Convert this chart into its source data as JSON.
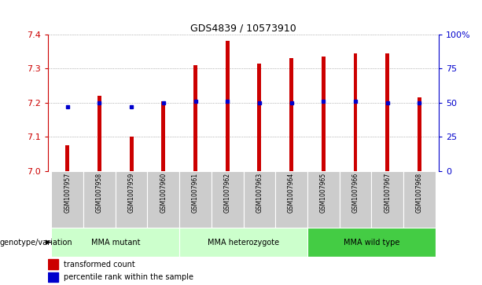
{
  "title": "GDS4839 / 10573910",
  "samples": [
    "GSM1007957",
    "GSM1007958",
    "GSM1007959",
    "GSM1007960",
    "GSM1007961",
    "GSM1007962",
    "GSM1007963",
    "GSM1007964",
    "GSM1007965",
    "GSM1007966",
    "GSM1007967",
    "GSM1007968"
  ],
  "transformed_count": [
    7.075,
    7.22,
    7.1,
    7.205,
    7.31,
    7.38,
    7.315,
    7.33,
    7.335,
    7.345,
    7.345,
    7.215
  ],
  "percentile_rank_vals": [
    47,
    50,
    47,
    50,
    51,
    51,
    50,
    50,
    51,
    51,
    50,
    50
  ],
  "ylim_left": [
    7.0,
    7.4
  ],
  "ylim_right": [
    0,
    100
  ],
  "yticks_left": [
    7.0,
    7.1,
    7.2,
    7.3,
    7.4
  ],
  "yticks_right": [
    0,
    25,
    50,
    75,
    100
  ],
  "ytick_labels_right": [
    "0",
    "25",
    "50",
    "75",
    "100%"
  ],
  "bar_color": "#cc0000",
  "dot_color": "#0000cc",
  "bar_bottom": 7.0,
  "group_defs": [
    [
      0,
      4,
      "MMA mutant",
      "#ccffcc"
    ],
    [
      4,
      8,
      "MMA heterozygote",
      "#ccffcc"
    ],
    [
      8,
      12,
      "MMA wild type",
      "#44cc44"
    ]
  ],
  "legend_red_label": "transformed count",
  "legend_blue_label": "percentile rank within the sample",
  "genotype_label": "genotype/variation",
  "tick_color_left": "#cc0000",
  "tick_color_right": "#0000cc",
  "cell_bg": "#cccccc",
  "bar_width": 0.12
}
